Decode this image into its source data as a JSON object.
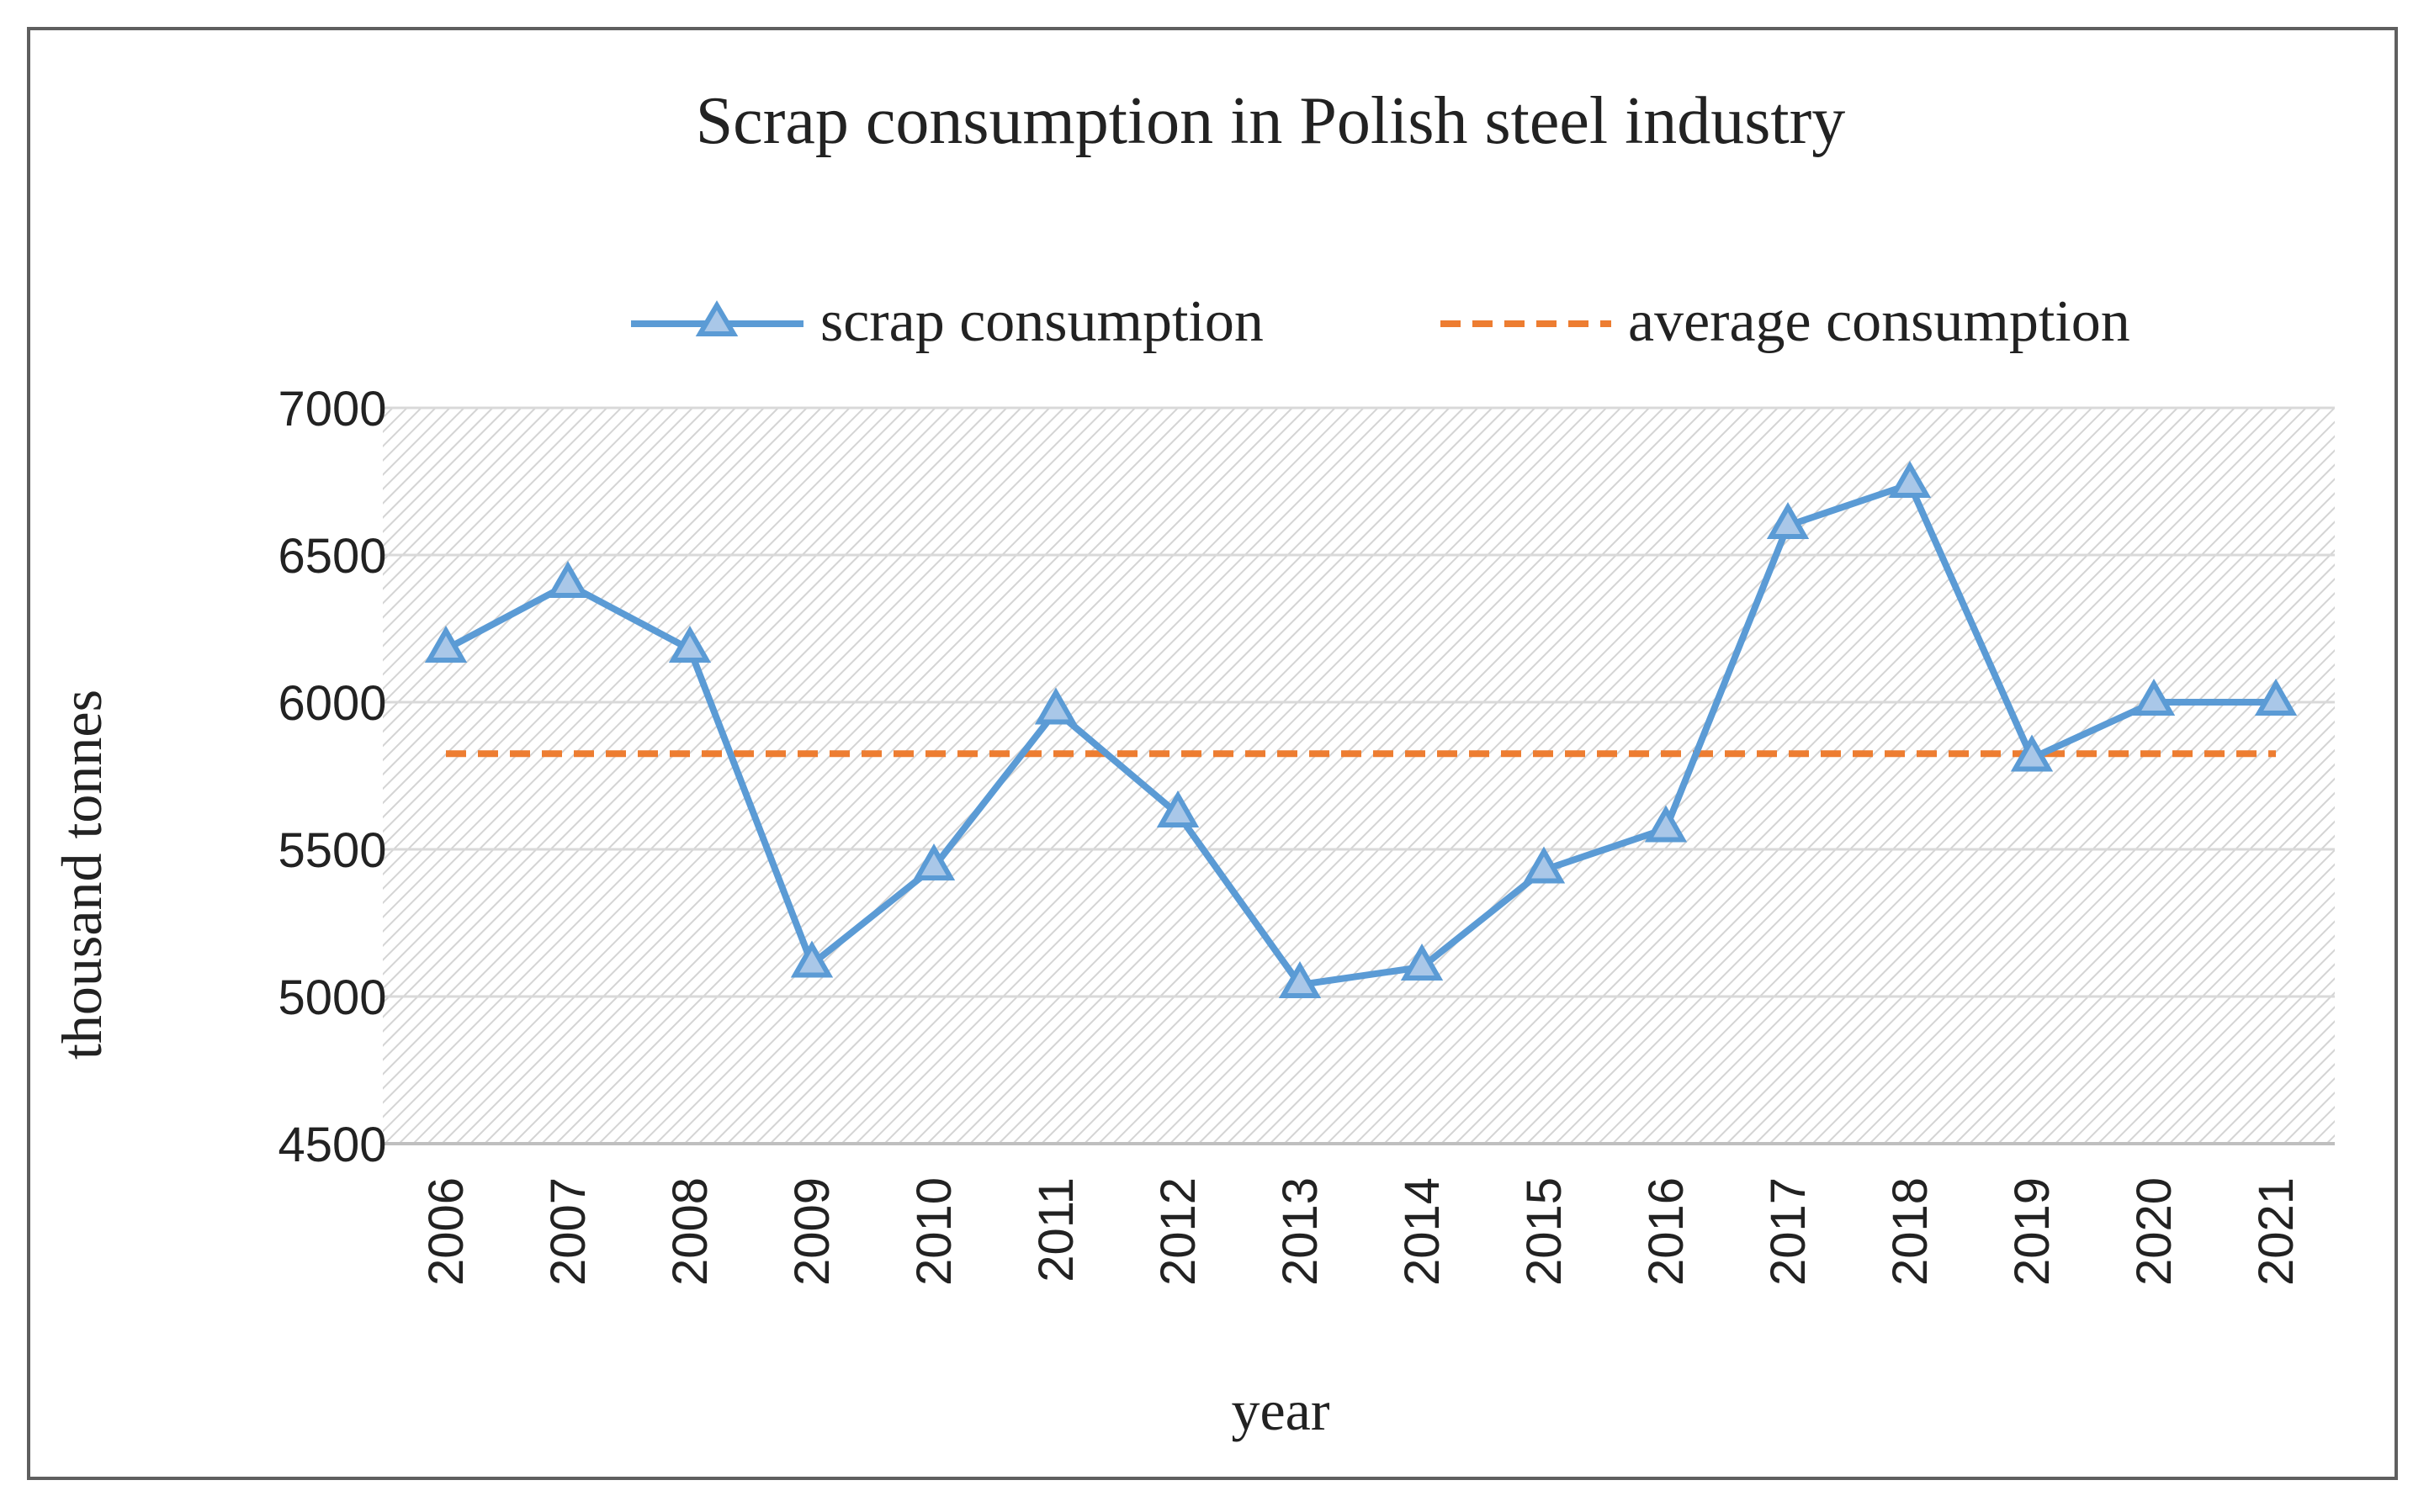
{
  "chart_data": {
    "type": "line",
    "title": "Scrap consumption in Polish steel industry",
    "xlabel": "year",
    "ylabel": "thousand tonnes",
    "ylim": [
      4500,
      7000
    ],
    "yticks": [
      "4500",
      "5000",
      "5500",
      "6000",
      "6500",
      "7000"
    ],
    "categories": [
      "2006",
      "2007",
      "2008",
      "2009",
      "2010",
      "2011",
      "2012",
      "2013",
      "2014",
      "2015",
      "2016",
      "2017",
      "2018",
      "2019",
      "2020",
      "2021"
    ],
    "series": [
      {
        "name": "scrap consumption",
        "color": "#5b9bd5",
        "marker": "triangle",
        "values": [
          6180,
          6400,
          6180,
          5110,
          5440,
          5970,
          5620,
          5040,
          5100,
          5430,
          5570,
          6600,
          6740,
          5810,
          6000,
          6000
        ]
      },
      {
        "name": "average consumption",
        "color": "#ed7d31",
        "style": "dashed",
        "value": 5825
      }
    ],
    "legend_position": "top",
    "grid": true,
    "plot_background": "hatched"
  }
}
